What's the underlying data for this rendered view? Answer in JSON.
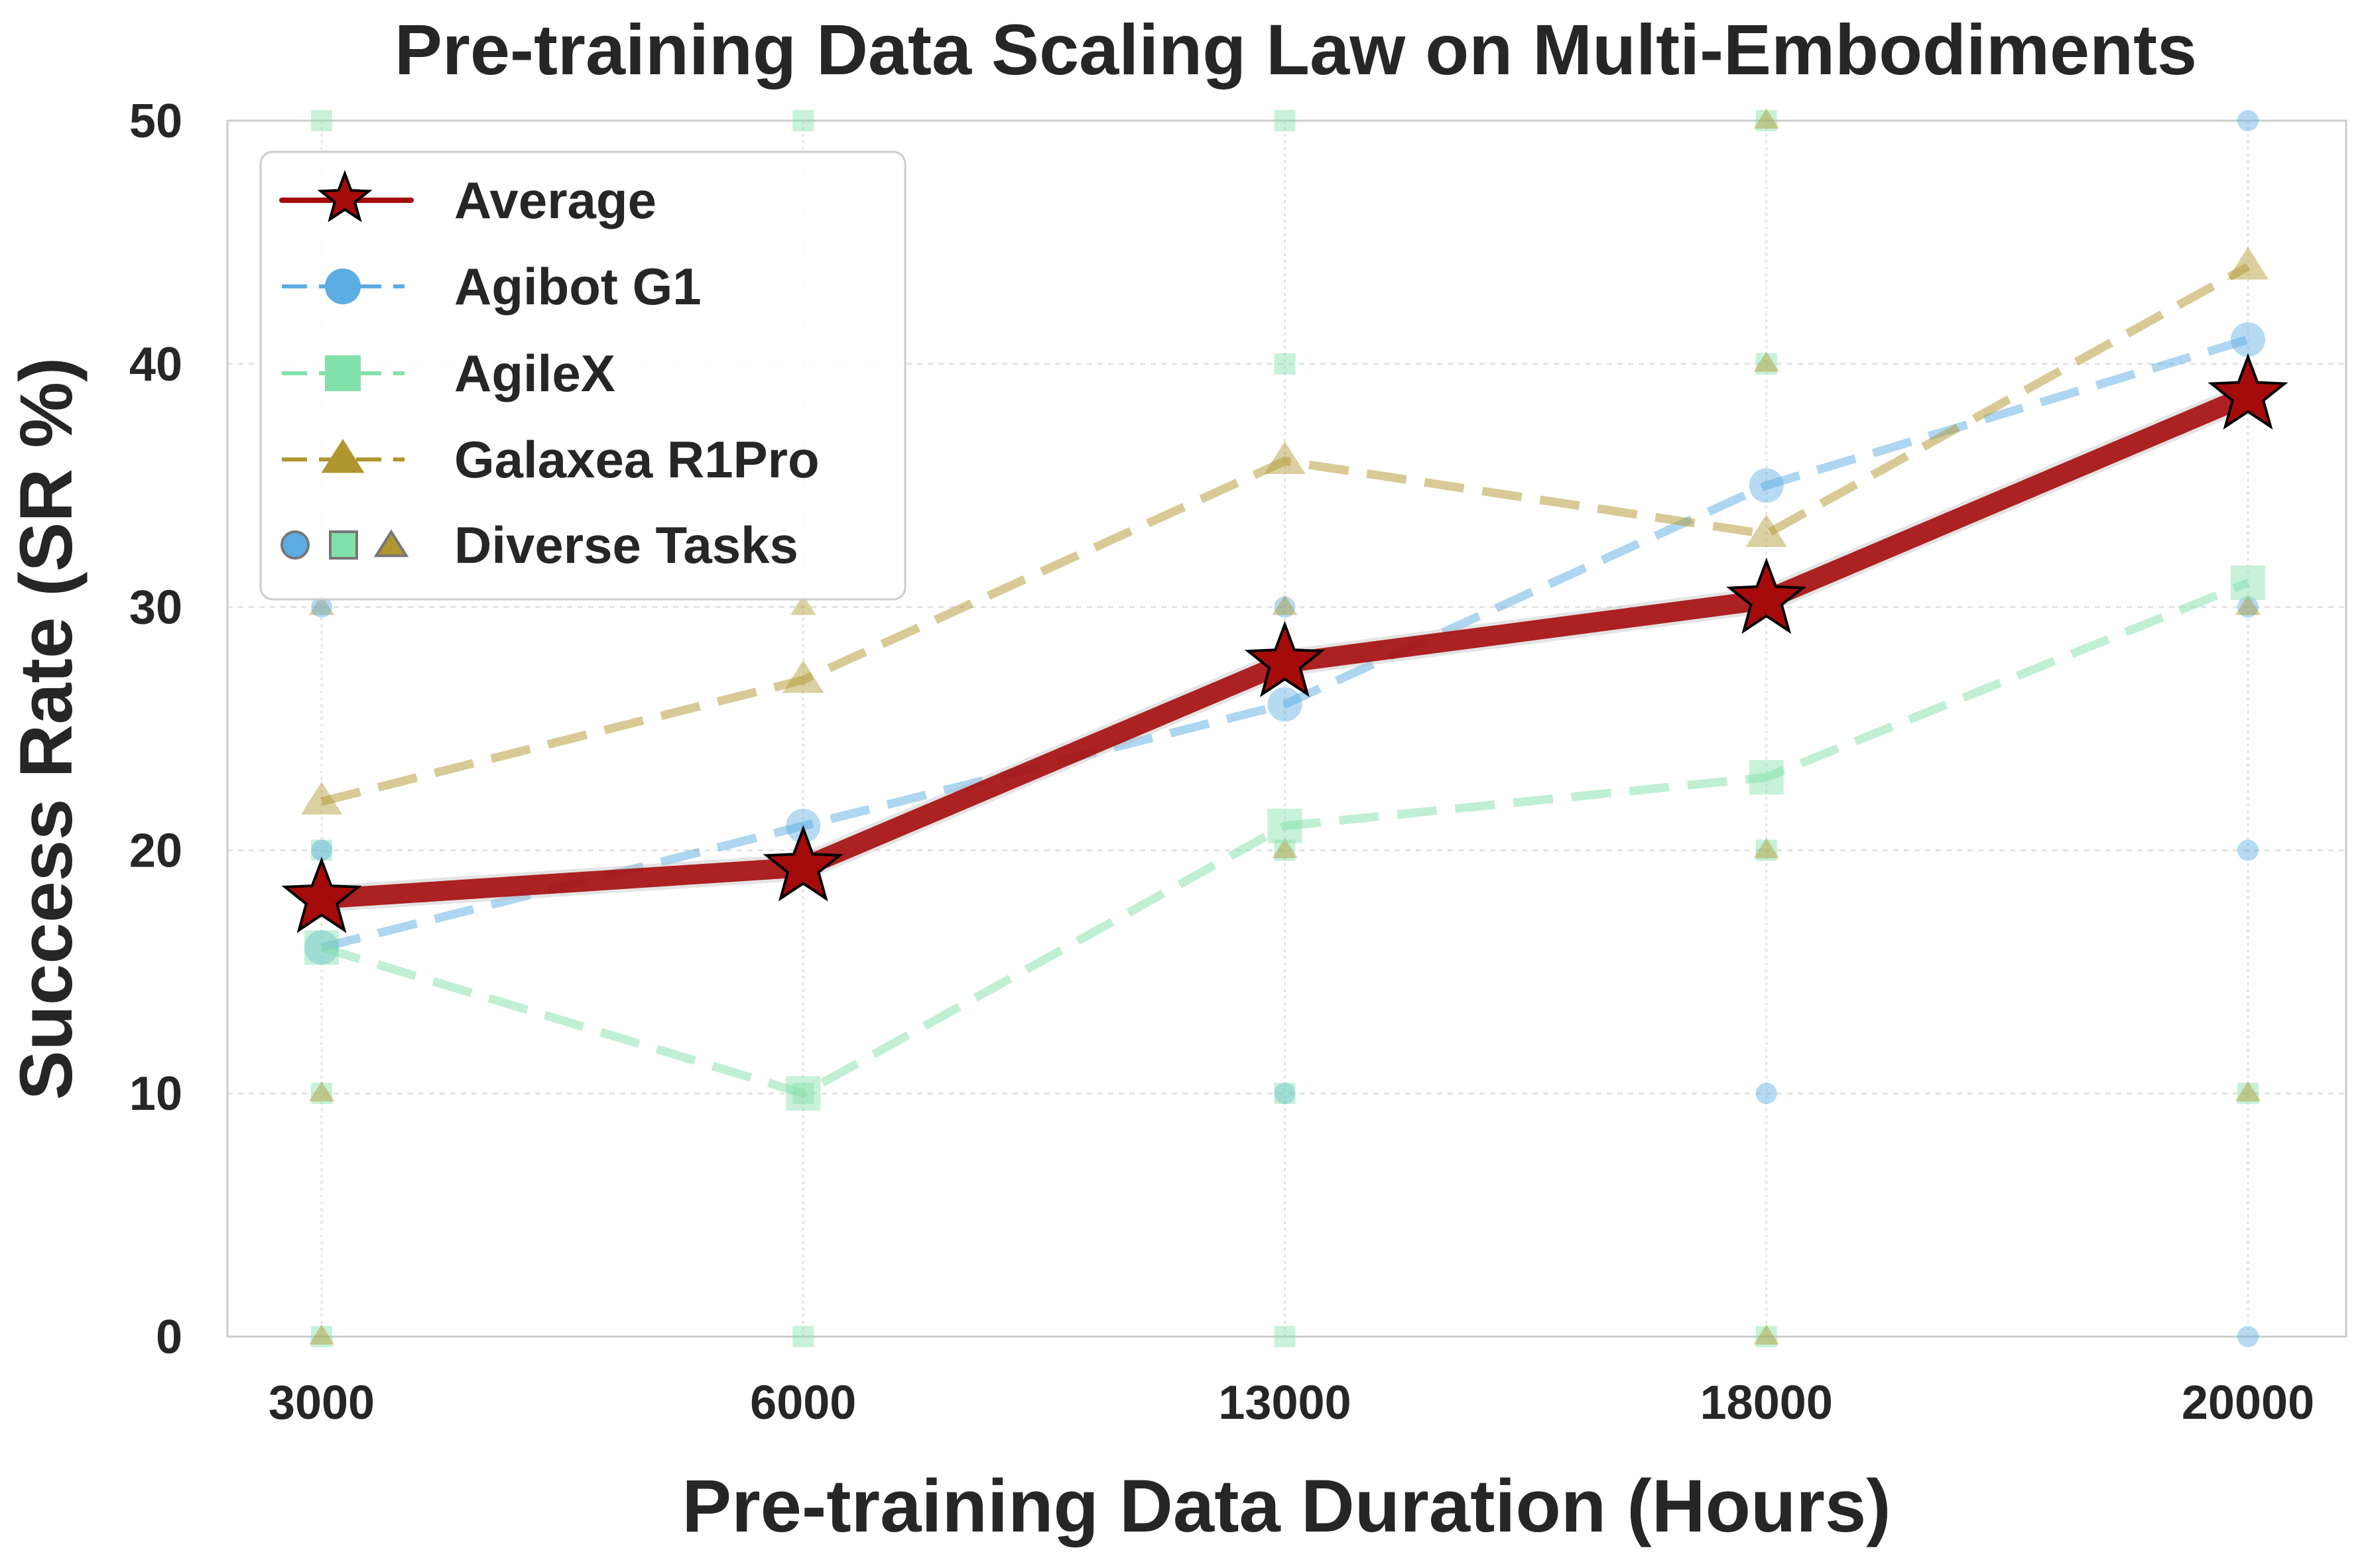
{
  "chart_data": {
    "type": "line",
    "title": "Pre-training Data Scaling Law on Multi-Embodiments",
    "xlabel": "Pre-training Data Duration (Hours)",
    "ylabel": "Success Rate (SR %)",
    "categories": [
      "3000",
      "6000",
      "13000",
      "18000",
      "20000"
    ],
    "ylim": [
      0,
      50
    ],
    "yticks": [
      "0",
      "10",
      "20",
      "30",
      "40",
      "50"
    ],
    "grid": true,
    "legend_placement": "top-left",
    "series": [
      {
        "name": "Agibot G1",
        "color": "#5DADE2",
        "marker": "circle",
        "values": [
          16,
          21,
          26,
          35,
          41
        ]
      },
      {
        "name": "AgileX",
        "color": "#82E0AA",
        "marker": "square",
        "values": [
          16,
          10,
          21,
          23,
          31
        ]
      },
      {
        "name": "Galaxea R1Pro",
        "color": "#B0962E",
        "marker": "triangle",
        "values": [
          22,
          27,
          36,
          33,
          44
        ]
      },
      {
        "name": "Average",
        "color": "#A50B0B",
        "marker": "star",
        "values": [
          18,
          19.3,
          27.7,
          30.3,
          38.7
        ]
      }
    ],
    "legend": [
      "Average",
      "Agibot G1",
      "AgileX",
      "Galaxea R1Pro",
      "Diverse Tasks"
    ],
    "diverse_tasks": [
      {
        "x": "3000",
        "points": [
          [
            50,
            "square"
          ],
          [
            30,
            "triangle"
          ],
          [
            30,
            "circle"
          ],
          [
            20,
            "square"
          ],
          [
            20,
            "circle"
          ],
          [
            10,
            "square"
          ],
          [
            10,
            "triangle"
          ],
          [
            0,
            "square"
          ],
          [
            0,
            "triangle"
          ]
        ]
      },
      {
        "x": "6000",
        "points": [
          [
            50,
            "square"
          ],
          [
            30,
            "triangle"
          ],
          [
            10,
            "square"
          ],
          [
            0,
            "square"
          ]
        ]
      },
      {
        "x": "13000",
        "points": [
          [
            50,
            "square"
          ],
          [
            40,
            "square"
          ],
          [
            30,
            "circle"
          ],
          [
            30,
            "triangle"
          ],
          [
            20,
            "square"
          ],
          [
            20,
            "triangle"
          ],
          [
            10,
            "circle"
          ],
          [
            10,
            "square"
          ],
          [
            0,
            "square"
          ]
        ]
      },
      {
        "x": "18000",
        "points": [
          [
            50,
            "square"
          ],
          [
            50,
            "triangle"
          ],
          [
            40,
            "square"
          ],
          [
            40,
            "triangle"
          ],
          [
            20,
            "square"
          ],
          [
            20,
            "triangle"
          ],
          [
            10,
            "circle"
          ],
          [
            0,
            "square"
          ],
          [
            0,
            "triangle"
          ]
        ]
      },
      {
        "x": "20000",
        "points": [
          [
            50,
            "circle"
          ],
          [
            30,
            "circle"
          ],
          [
            30,
            "triangle"
          ],
          [
            20,
            "circle"
          ],
          [
            10,
            "square"
          ],
          [
            10,
            "triangle"
          ],
          [
            0,
            "circle"
          ]
        ]
      }
    ]
  }
}
